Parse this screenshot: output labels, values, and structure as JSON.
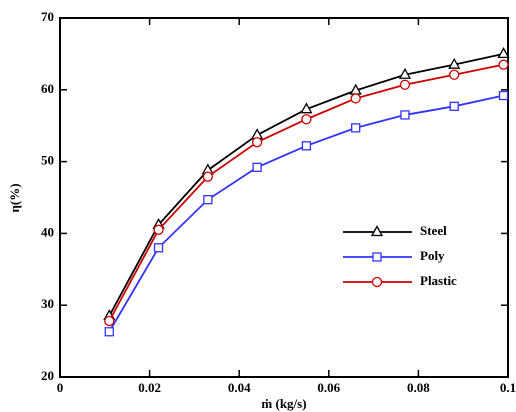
{
  "chart_data": {
    "type": "line",
    "x_label": "ṁ (kg/s)",
    "y_label": "η(%)",
    "x": [
      0.011,
      0.022,
      0.033,
      0.044,
      0.055,
      0.066,
      0.077,
      0.088,
      0.099
    ],
    "series": [
      {
        "name": "Steel",
        "color": "#000000",
        "marker": "triangle",
        "values": [
          28.5,
          41.2,
          48.8,
          53.7,
          57.3,
          59.9,
          62.1,
          63.5,
          65.0
        ]
      },
      {
        "name": "Poly",
        "color": "#3333ff",
        "marker": "square",
        "values": [
          26.3,
          38.0,
          44.7,
          49.2,
          52.2,
          54.7,
          56.5,
          57.7,
          59.2
        ]
      },
      {
        "name": "Plastic",
        "color": "#cc0000",
        "marker": "circle",
        "values": [
          27.8,
          40.5,
          47.9,
          52.7,
          55.9,
          58.8,
          60.7,
          62.1,
          63.5
        ]
      }
    ],
    "xlim": [
      0,
      0.1
    ],
    "xticks": [
      0,
      0.02,
      0.04,
      0.06,
      0.08,
      0.1
    ],
    "ylim": [
      20,
      70
    ],
    "yticks": [
      20,
      30,
      40,
      50,
      60,
      70
    ],
    "grid": false,
    "legend": "right"
  }
}
